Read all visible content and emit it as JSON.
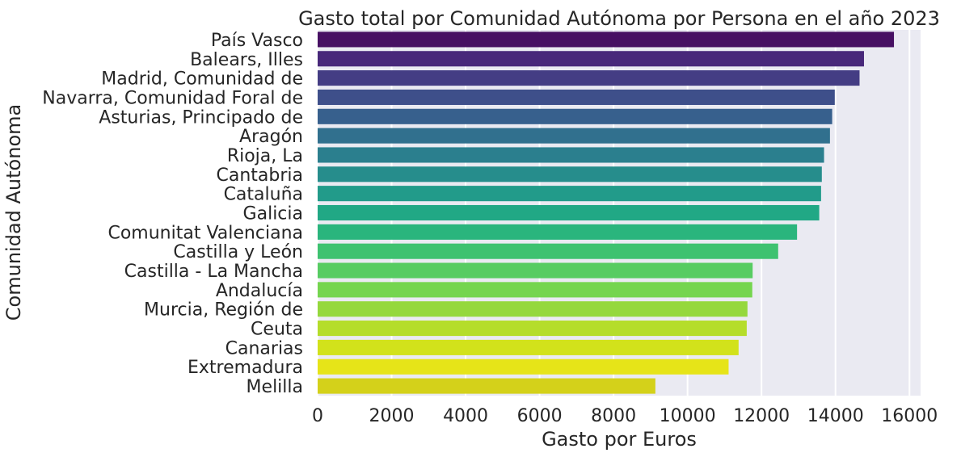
{
  "chart_data": {
    "type": "bar",
    "orientation": "horizontal",
    "title": "Gasto total por Comunidad Autónoma por Persona en el año 2023",
    "xlabel": "Gasto por Euros",
    "ylabel": "Comunidad Autónoma",
    "xlim": [
      0,
      16300
    ],
    "xticks": [
      0,
      2000,
      4000,
      6000,
      8000,
      10000,
      12000,
      14000,
      16000
    ],
    "grid": true,
    "categories": [
      "País Vasco",
      "Balears, Illes",
      "Madrid, Comunidad de",
      "Navarra, Comunidad Foral de",
      "Asturias, Principado de",
      "Aragón",
      "Rioja, La",
      "Cantabria",
      "Cataluña",
      "Galicia",
      "Comunitat Valenciana",
      "Castilla y León",
      "Castilla - La Mancha",
      "Andalucía",
      "Murcia, Región de",
      "Ceuta",
      "Canarias",
      "Extremadura",
      "Melilla"
    ],
    "values": [
      15580,
      14770,
      14650,
      13980,
      13910,
      13850,
      13690,
      13630,
      13610,
      13560,
      12960,
      12450,
      11760,
      11750,
      11620,
      11600,
      11380,
      11110,
      9130
    ],
    "colors": [
      "#471063",
      "#48287a",
      "#443d84",
      "#3e4f8a",
      "#37608d",
      "#31708e",
      "#2b7f8e",
      "#268d8c",
      "#229b8a",
      "#21a885",
      "#2ab57d",
      "#3ec270",
      "#57cc62",
      "#75d54f",
      "#95d83d",
      "#b5dd2b",
      "#d2e21b",
      "#e6e418",
      "#d4d11a"
    ],
    "plot_bg": "#eaeaf2",
    "grid_color": "#ffffff"
  }
}
